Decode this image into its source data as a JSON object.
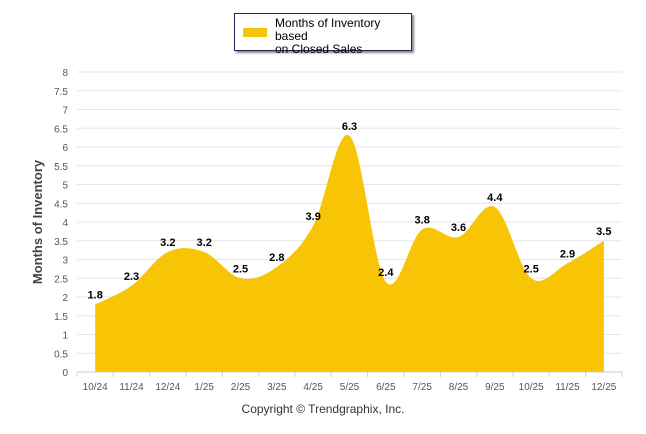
{
  "chart_data": {
    "type": "area",
    "title": "",
    "xlabel": "",
    "ylabel": "Months of Inventory",
    "categories": [
      "10/24",
      "11/24",
      "12/24",
      "1/25",
      "2/25",
      "3/25",
      "4/25",
      "5/25",
      "6/25",
      "7/25",
      "8/25",
      "9/25",
      "10/25",
      "11/25",
      "12/25"
    ],
    "series": [
      {
        "name": "Months of Inventory based on Closed Sales",
        "values": [
          1.8,
          2.3,
          3.2,
          3.2,
          2.5,
          2.8,
          3.9,
          6.3,
          2.4,
          3.8,
          3.6,
          4.4,
          2.5,
          2.9,
          3.5
        ]
      }
    ],
    "ylim": [
      0,
      8
    ],
    "yticks": [
      "0",
      "0.5",
      "1",
      "1.5",
      "2",
      "2.5",
      "3",
      "3.5",
      "4",
      "4.5",
      "5",
      "5.5",
      "6",
      "6.5",
      "7",
      "7.5",
      "8"
    ],
    "grid": true,
    "legend_position": "top-center",
    "color": "#F7C406"
  },
  "legend": {
    "line1": "Months of Inventory based",
    "line2": "on Closed Sales"
  },
  "copyright": "Copyright © Trendgraphix, Inc."
}
